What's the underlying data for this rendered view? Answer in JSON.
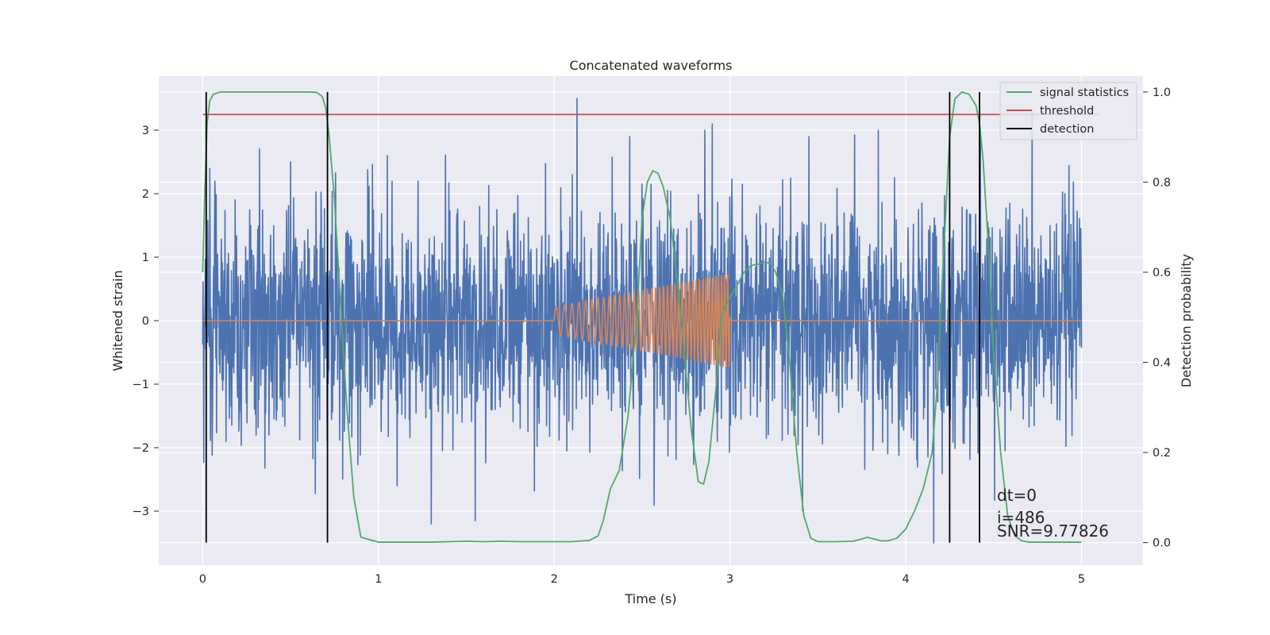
{
  "chart_data": {
    "type": "line",
    "title": "Concatenated waveforms",
    "xlabel": "Time (s)",
    "ylabel": "Whitened strain",
    "ylabel_right": "Detection probability",
    "xlim": [
      -0.25,
      5.35
    ],
    "ylim": [
      -3.85,
      3.85
    ],
    "ylim_right": [
      -0.05,
      1.035
    ],
    "x_ticks": [
      0,
      1,
      2,
      3,
      4,
      5
    ],
    "x_tick_labels": [
      "0",
      "1",
      "2",
      "3",
      "4",
      "5"
    ],
    "y_ticks": [
      -3,
      -2,
      -1,
      0,
      1,
      2,
      3
    ],
    "y_tick_labels": [
      "−3",
      "−2",
      "−1",
      "0",
      "1",
      "2",
      "3"
    ],
    "y_ticks_right": [
      0.0,
      0.2,
      0.4,
      0.6,
      0.8,
      1.0
    ],
    "y_tick_labels_right": [
      "0.0",
      "0.2",
      "0.4",
      "0.6",
      "0.8",
      "1.0"
    ],
    "grid": true,
    "legend_position": "top-right",
    "colors": {
      "background": "#eaeaf2",
      "grid": "#ffffff",
      "noise": "#4c72b0",
      "template": "#dd8452",
      "statistic": "#55a868",
      "threshold": "#c44e52",
      "detection": "#000000"
    },
    "series": [
      {
        "name": "",
        "role": "whitened-strain",
        "axis": "left",
        "time_range": [
          0,
          5
        ],
        "typical_amplitude": 0.9,
        "peak_values": [
          {
            "x": 0.07,
            "y": 2.2
          },
          {
            "x": 0.5,
            "y": 2.5
          },
          {
            "x": 1.05,
            "y": 2.6
          },
          {
            "x": 1.3,
            "y": -3.2
          },
          {
            "x": 1.55,
            "y": -3.15
          },
          {
            "x": 2.13,
            "y": 3.5
          },
          {
            "x": 2.43,
            "y": 2.9
          },
          {
            "x": 2.9,
            "y": 3.1
          },
          {
            "x": 3.45,
            "y": 2.9
          },
          {
            "x": 4.16,
            "y": -3.5
          },
          {
            "x": 4.72,
            "y": 3.3
          }
        ]
      },
      {
        "name": "",
        "role": "injected-chirp",
        "axis": "left",
        "time_range": [
          0,
          5
        ],
        "chirp_start": 2.0,
        "chirp_end": 3.0,
        "amplitude_start": 0.22,
        "amplitude_end": 0.75,
        "frequency_start_hz": 20,
        "frequency_end_hz": 60
      },
      {
        "name": "signal statistics",
        "axis": "right",
        "x": [
          0.0,
          0.01,
          0.025,
          0.04,
          0.06,
          0.1,
          0.2,
          0.4,
          0.6,
          0.65,
          0.68,
          0.7,
          0.72,
          0.75,
          0.78,
          0.82,
          0.86,
          0.9,
          1.0,
          1.3,
          1.4,
          1.5,
          1.6,
          1.7,
          1.8,
          2.0,
          2.1,
          2.2,
          2.25,
          2.28,
          2.32,
          2.37,
          2.42,
          2.47,
          2.5,
          2.53,
          2.56,
          2.59,
          2.62,
          2.66,
          2.7,
          2.74,
          2.78,
          2.82,
          2.85,
          2.88,
          2.92,
          2.95,
          2.98,
          3.0,
          3.04,
          3.08,
          3.12,
          3.16,
          3.2,
          3.23,
          3.26,
          3.3,
          3.34,
          3.38,
          3.42,
          3.46,
          3.5,
          3.6,
          3.7,
          3.75,
          3.78,
          3.82,
          3.86,
          3.9,
          3.95,
          4.0,
          4.05,
          4.1,
          4.15,
          4.18,
          4.21,
          4.25,
          4.28,
          4.32,
          4.36,
          4.4,
          4.42,
          4.44,
          4.47,
          4.5,
          4.54,
          4.58,
          4.62,
          4.66,
          4.7,
          4.8,
          5.0
        ],
        "y": [
          0.6,
          0.75,
          0.93,
          0.98,
          0.995,
          1.0,
          1.0,
          1.0,
          1.0,
          0.999,
          0.99,
          0.965,
          0.9,
          0.76,
          0.56,
          0.3,
          0.1,
          0.012,
          0.001,
          0.001,
          0.002,
          0.003,
          0.002,
          0.003,
          0.002,
          0.002,
          0.002,
          0.005,
          0.015,
          0.05,
          0.12,
          0.16,
          0.28,
          0.5,
          0.72,
          0.8,
          0.825,
          0.82,
          0.79,
          0.72,
          0.58,
          0.42,
          0.25,
          0.135,
          0.13,
          0.18,
          0.34,
          0.5,
          0.53,
          0.545,
          0.57,
          0.6,
          0.615,
          0.618,
          0.622,
          0.62,
          0.6,
          0.55,
          0.4,
          0.2,
          0.06,
          0.01,
          0.002,
          0.002,
          0.003,
          0.008,
          0.012,
          0.008,
          0.004,
          0.004,
          0.01,
          0.03,
          0.07,
          0.12,
          0.2,
          0.35,
          0.6,
          0.9,
          0.985,
          1.0,
          0.995,
          0.97,
          0.93,
          0.85,
          0.66,
          0.42,
          0.2,
          0.06,
          0.015,
          0.004,
          0.001,
          0.001,
          0.001
        ]
      },
      {
        "name": "threshold",
        "axis": "right",
        "x": [
          0,
          5.1
        ],
        "y": [
          0.95,
          0.95
        ]
      },
      {
        "name": "detection",
        "axis": "right",
        "events": [
          0.02,
          0.71,
          4.25,
          4.42
        ],
        "y_range": [
          0.0,
          1.0
        ]
      }
    ],
    "annotations": [
      "dt=0",
      "i=486",
      "SNR=9.77826"
    ]
  }
}
